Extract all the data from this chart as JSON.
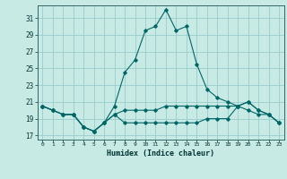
{
  "xlabel": "Humidex (Indice chaleur)",
  "background_color": "#c8eae5",
  "grid_color": "#99cccc",
  "line_color": "#006666",
  "xlim": [
    -0.5,
    23.5
  ],
  "ylim": [
    16.5,
    32.5
  ],
  "xticks": [
    0,
    1,
    2,
    3,
    4,
    5,
    6,
    7,
    8,
    9,
    10,
    11,
    12,
    13,
    14,
    15,
    16,
    17,
    18,
    19,
    20,
    21,
    22,
    23
  ],
  "yticks": [
    17,
    19,
    21,
    23,
    25,
    27,
    29,
    31
  ],
  "series": [
    [
      20.5,
      20.0,
      19.5,
      19.5,
      18.0,
      17.5,
      18.5,
      20.5,
      24.5,
      26.0,
      29.5,
      30.0,
      32.0,
      29.5,
      30.0,
      25.5,
      22.5,
      21.5,
      21.0,
      20.5,
      21.0,
      20.0,
      19.5,
      18.5
    ],
    [
      20.5,
      20.0,
      19.5,
      19.5,
      18.0,
      17.5,
      18.5,
      19.5,
      20.0,
      20.0,
      20.0,
      20.0,
      20.5,
      20.5,
      20.5,
      20.5,
      20.5,
      20.5,
      20.5,
      20.5,
      20.0,
      19.5,
      19.5,
      18.5
    ],
    [
      20.5,
      20.0,
      19.5,
      19.5,
      18.0,
      17.5,
      18.5,
      19.5,
      18.5,
      18.5,
      18.5,
      18.5,
      18.5,
      18.5,
      18.5,
      18.5,
      19.0,
      19.0,
      19.0,
      20.5,
      21.0,
      20.0,
      19.5,
      18.5
    ]
  ]
}
